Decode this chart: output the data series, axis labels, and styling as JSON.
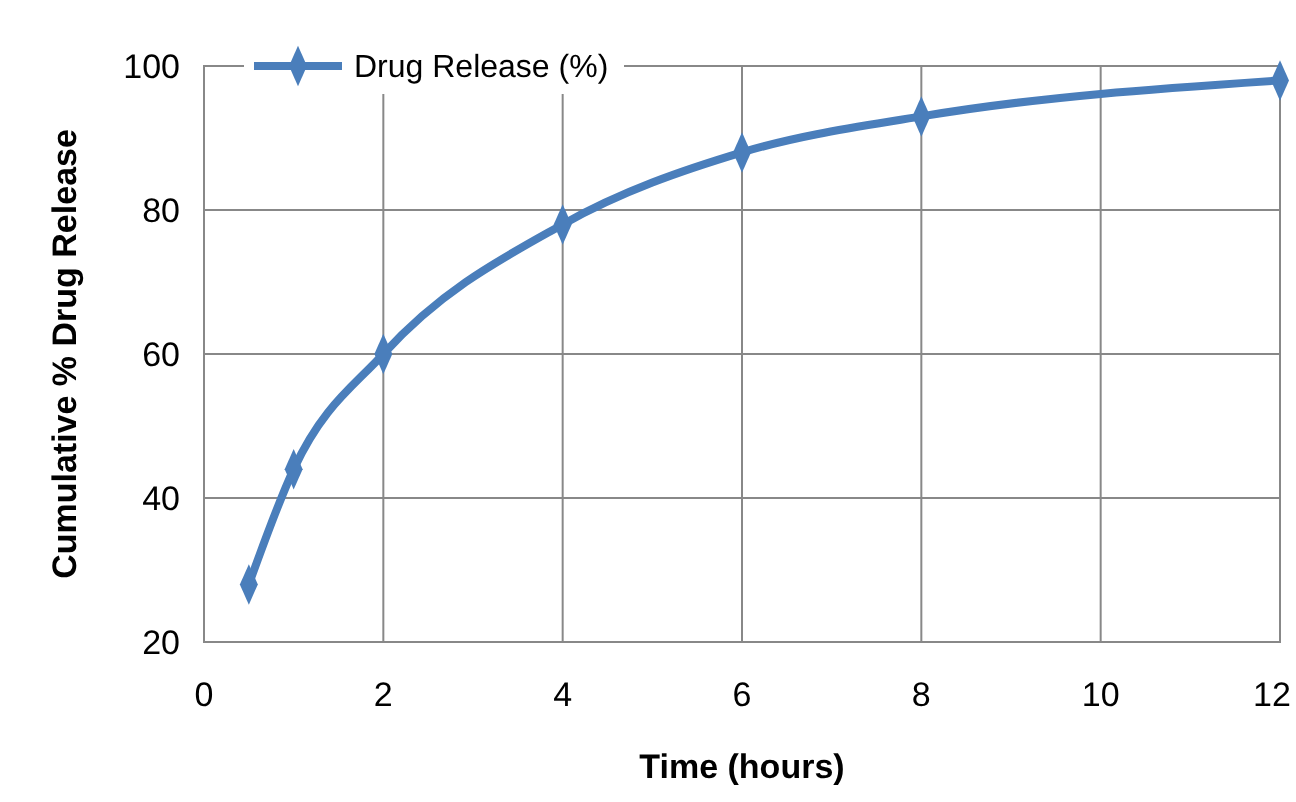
{
  "chart_data": {
    "type": "line",
    "xlabel": "Time (hours)",
    "ylabel": "Cumulative % Drug Release",
    "x": [
      0.5,
      1,
      2,
      4,
      6,
      8,
      12
    ],
    "series": [
      {
        "name": "Drug Release (%)",
        "color": "#4a7ebb",
        "values": [
          28,
          44,
          60,
          78,
          88,
          93,
          98
        ]
      }
    ],
    "xlim": [
      0,
      12
    ],
    "xticks": [
      0,
      2,
      4,
      6,
      8,
      10,
      12
    ],
    "ylim": [
      20,
      100
    ],
    "yticks": [
      20,
      40,
      60,
      80,
      100
    ],
    "grid": true,
    "legend": "top left",
    "marker": "diamond",
    "line_style": "solid"
  }
}
